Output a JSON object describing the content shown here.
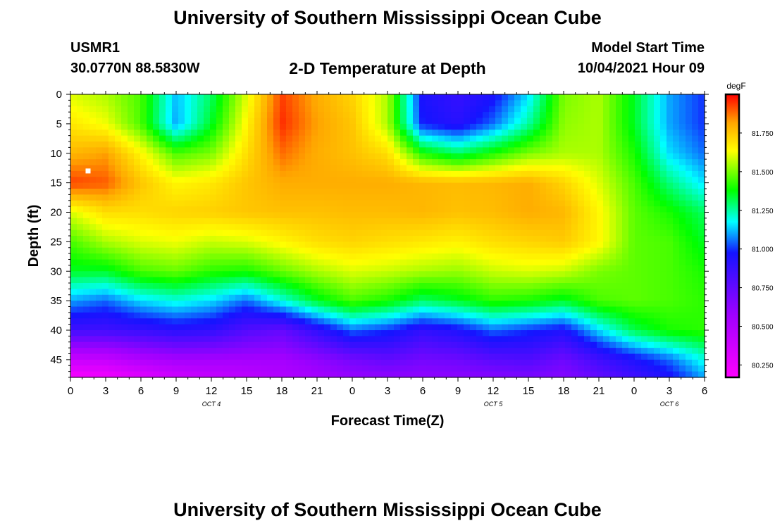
{
  "header": {
    "title": "University of Southern Mississippi Ocean Cube",
    "station": "USMR1",
    "coords": "30.0770N  88.5830W",
    "plot_title": "2-D Temperature at Depth",
    "start_label": "Model Start Time",
    "start_value": "10/04/2021 Hour 09"
  },
  "footer": {
    "title": "University of Southern Mississippi Ocean Cube"
  },
  "chart_data": {
    "type": "heatmap",
    "title": "2-D Temperature at Depth",
    "xlabel": "Forecast Time(Z)",
    "ylabel": "Depth (ft)",
    "x_ticks": [
      "0",
      "3",
      "6",
      "9",
      "12",
      "15",
      "18",
      "21",
      "0",
      "3",
      "6",
      "9",
      "12",
      "15",
      "18",
      "21",
      "0",
      "3",
      "6"
    ],
    "x_range_hours": [
      0,
      54
    ],
    "day_labels": [
      {
        "label": "OCT 4",
        "hour": 12
      },
      {
        "label": "OCT 5",
        "hour": 36
      },
      {
        "label": "OCT 6",
        "hour": 51
      }
    ],
    "y_ticks": [
      0,
      5,
      10,
      15,
      20,
      25,
      30,
      35,
      40,
      45
    ],
    "y_range": [
      0,
      48
    ],
    "y_reversed": true,
    "colorbar": {
      "unit": "degF",
      "ticks": [
        "81.750",
        "81.500",
        "81.250",
        "81.000",
        "80.750",
        "80.500",
        "80.250"
      ],
      "min": 80.17,
      "max": 82.0
    },
    "marker": {
      "hour": 1.5,
      "depth": 13
    },
    "depth_rows": [
      0,
      5,
      10,
      15,
      20,
      25,
      30,
      35,
      40,
      45,
      48
    ],
    "time_cols": [
      0,
      3,
      6,
      9,
      12,
      15,
      18,
      21,
      24,
      27,
      30,
      33,
      36,
      39,
      42,
      45,
      48,
      51,
      54
    ],
    "values": [
      [
        81.6,
        81.55,
        81.45,
        81.12,
        81.3,
        81.6,
        81.93,
        81.8,
        81.72,
        81.55,
        80.95,
        80.88,
        80.95,
        81.15,
        81.5,
        81.55,
        81.35,
        81.1,
        81.0
      ],
      [
        81.68,
        81.62,
        81.45,
        81.1,
        81.35,
        81.65,
        81.95,
        81.82,
        81.75,
        81.55,
        80.98,
        80.92,
        81.05,
        81.25,
        81.52,
        81.55,
        81.35,
        81.1,
        81.0
      ],
      [
        81.78,
        81.82,
        81.65,
        81.45,
        81.5,
        81.7,
        81.88,
        81.8,
        81.76,
        81.7,
        81.4,
        81.3,
        81.4,
        81.5,
        81.55,
        81.55,
        81.4,
        81.15,
        81.05
      ],
      [
        81.93,
        81.9,
        81.75,
        81.65,
        81.68,
        81.75,
        81.8,
        81.8,
        81.8,
        81.8,
        81.78,
        81.77,
        81.78,
        81.8,
        81.72,
        81.6,
        81.45,
        81.28,
        81.15
      ],
      [
        81.6,
        81.7,
        81.7,
        81.72,
        81.73,
        81.75,
        81.76,
        81.76,
        81.77,
        81.77,
        81.78,
        81.76,
        81.77,
        81.8,
        81.78,
        81.65,
        81.47,
        81.4,
        81.3
      ],
      [
        81.45,
        81.55,
        81.6,
        81.62,
        81.58,
        81.6,
        81.65,
        81.7,
        81.72,
        81.7,
        81.68,
        81.66,
        81.7,
        81.72,
        81.74,
        81.65,
        81.47,
        81.45,
        81.35
      ],
      [
        81.35,
        81.35,
        81.45,
        81.48,
        81.42,
        81.4,
        81.48,
        81.55,
        81.6,
        81.58,
        81.55,
        81.53,
        81.58,
        81.6,
        81.58,
        81.5,
        81.47,
        81.45,
        81.4
      ],
      [
        81.1,
        81.05,
        81.15,
        81.2,
        81.15,
        81.05,
        81.2,
        81.35,
        81.45,
        81.4,
        81.3,
        81.35,
        81.42,
        81.4,
        81.35,
        81.45,
        81.47,
        81.45,
        81.42
      ],
      [
        80.85,
        80.85,
        80.88,
        80.92,
        80.9,
        80.8,
        80.75,
        80.9,
        81.05,
        81.0,
        80.9,
        80.95,
        81.05,
        81.0,
        80.95,
        81.15,
        81.32,
        81.4,
        81.42
      ],
      [
        80.4,
        80.42,
        80.5,
        80.55,
        80.55,
        80.55,
        80.55,
        80.62,
        80.7,
        80.75,
        80.7,
        80.72,
        80.78,
        80.8,
        80.72,
        80.85,
        80.95,
        81.05,
        81.2
      ],
      [
        80.2,
        80.22,
        80.3,
        80.38,
        80.42,
        80.45,
        80.5,
        80.55,
        80.6,
        80.62,
        80.62,
        80.63,
        80.65,
        80.68,
        80.65,
        80.75,
        80.85,
        80.95,
        81.1
      ]
    ]
  }
}
